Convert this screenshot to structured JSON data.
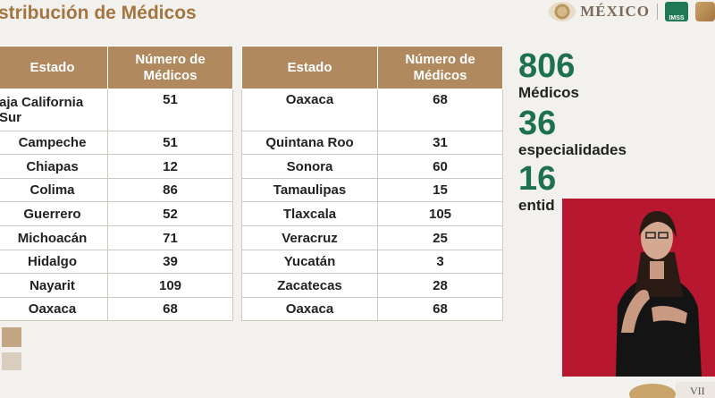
{
  "title": "stribución de Médicos",
  "logos": {
    "mexico": "MÉXICO",
    "imss": "IMSS"
  },
  "table1": {
    "headers": [
      "Estado",
      "Número de Médicos"
    ],
    "rows": [
      {
        "estado": "aja California Sur",
        "medicos": "51"
      },
      {
        "estado": "Campeche",
        "medicos": "51"
      },
      {
        "estado": "Chiapas",
        "medicos": "12"
      },
      {
        "estado": "Colima",
        "medicos": "86"
      },
      {
        "estado": "Guerrero",
        "medicos": "52"
      },
      {
        "estado": "Michoacán",
        "medicos": "71"
      },
      {
        "estado": "Hidalgo",
        "medicos": "39"
      },
      {
        "estado": "Nayarit",
        "medicos": "109"
      },
      {
        "estado": "Oaxaca",
        "medicos": "68"
      }
    ]
  },
  "table2": {
    "headers": [
      "Estado",
      "Número de Médicos"
    ],
    "rows": [
      {
        "estado": "Oaxaca",
        "medicos": "68"
      },
      {
        "estado": "Quintana Roo",
        "medicos": "31"
      },
      {
        "estado": "Sonora",
        "medicos": "60"
      },
      {
        "estado": "Tamaulipas",
        "medicos": "15"
      },
      {
        "estado": "Tlaxcala",
        "medicos": "105"
      },
      {
        "estado": "Veracruz",
        "medicos": "25"
      },
      {
        "estado": "Yucatán",
        "medicos": "3"
      },
      {
        "estado": "Zacatecas",
        "medicos": "28"
      },
      {
        "estado": "Oaxaca",
        "medicos": "68"
      }
    ]
  },
  "stats": [
    {
      "value": "806",
      "label": "Médicos"
    },
    {
      "value": "36",
      "label": "especialidades"
    },
    {
      "value": "16",
      "label": "entid"
    }
  ],
  "corner_text": "VII",
  "colors": {
    "header": "#b08a5e",
    "title": "#a4753f",
    "stat": "#1e7150",
    "video_bg": "#b8182f"
  }
}
